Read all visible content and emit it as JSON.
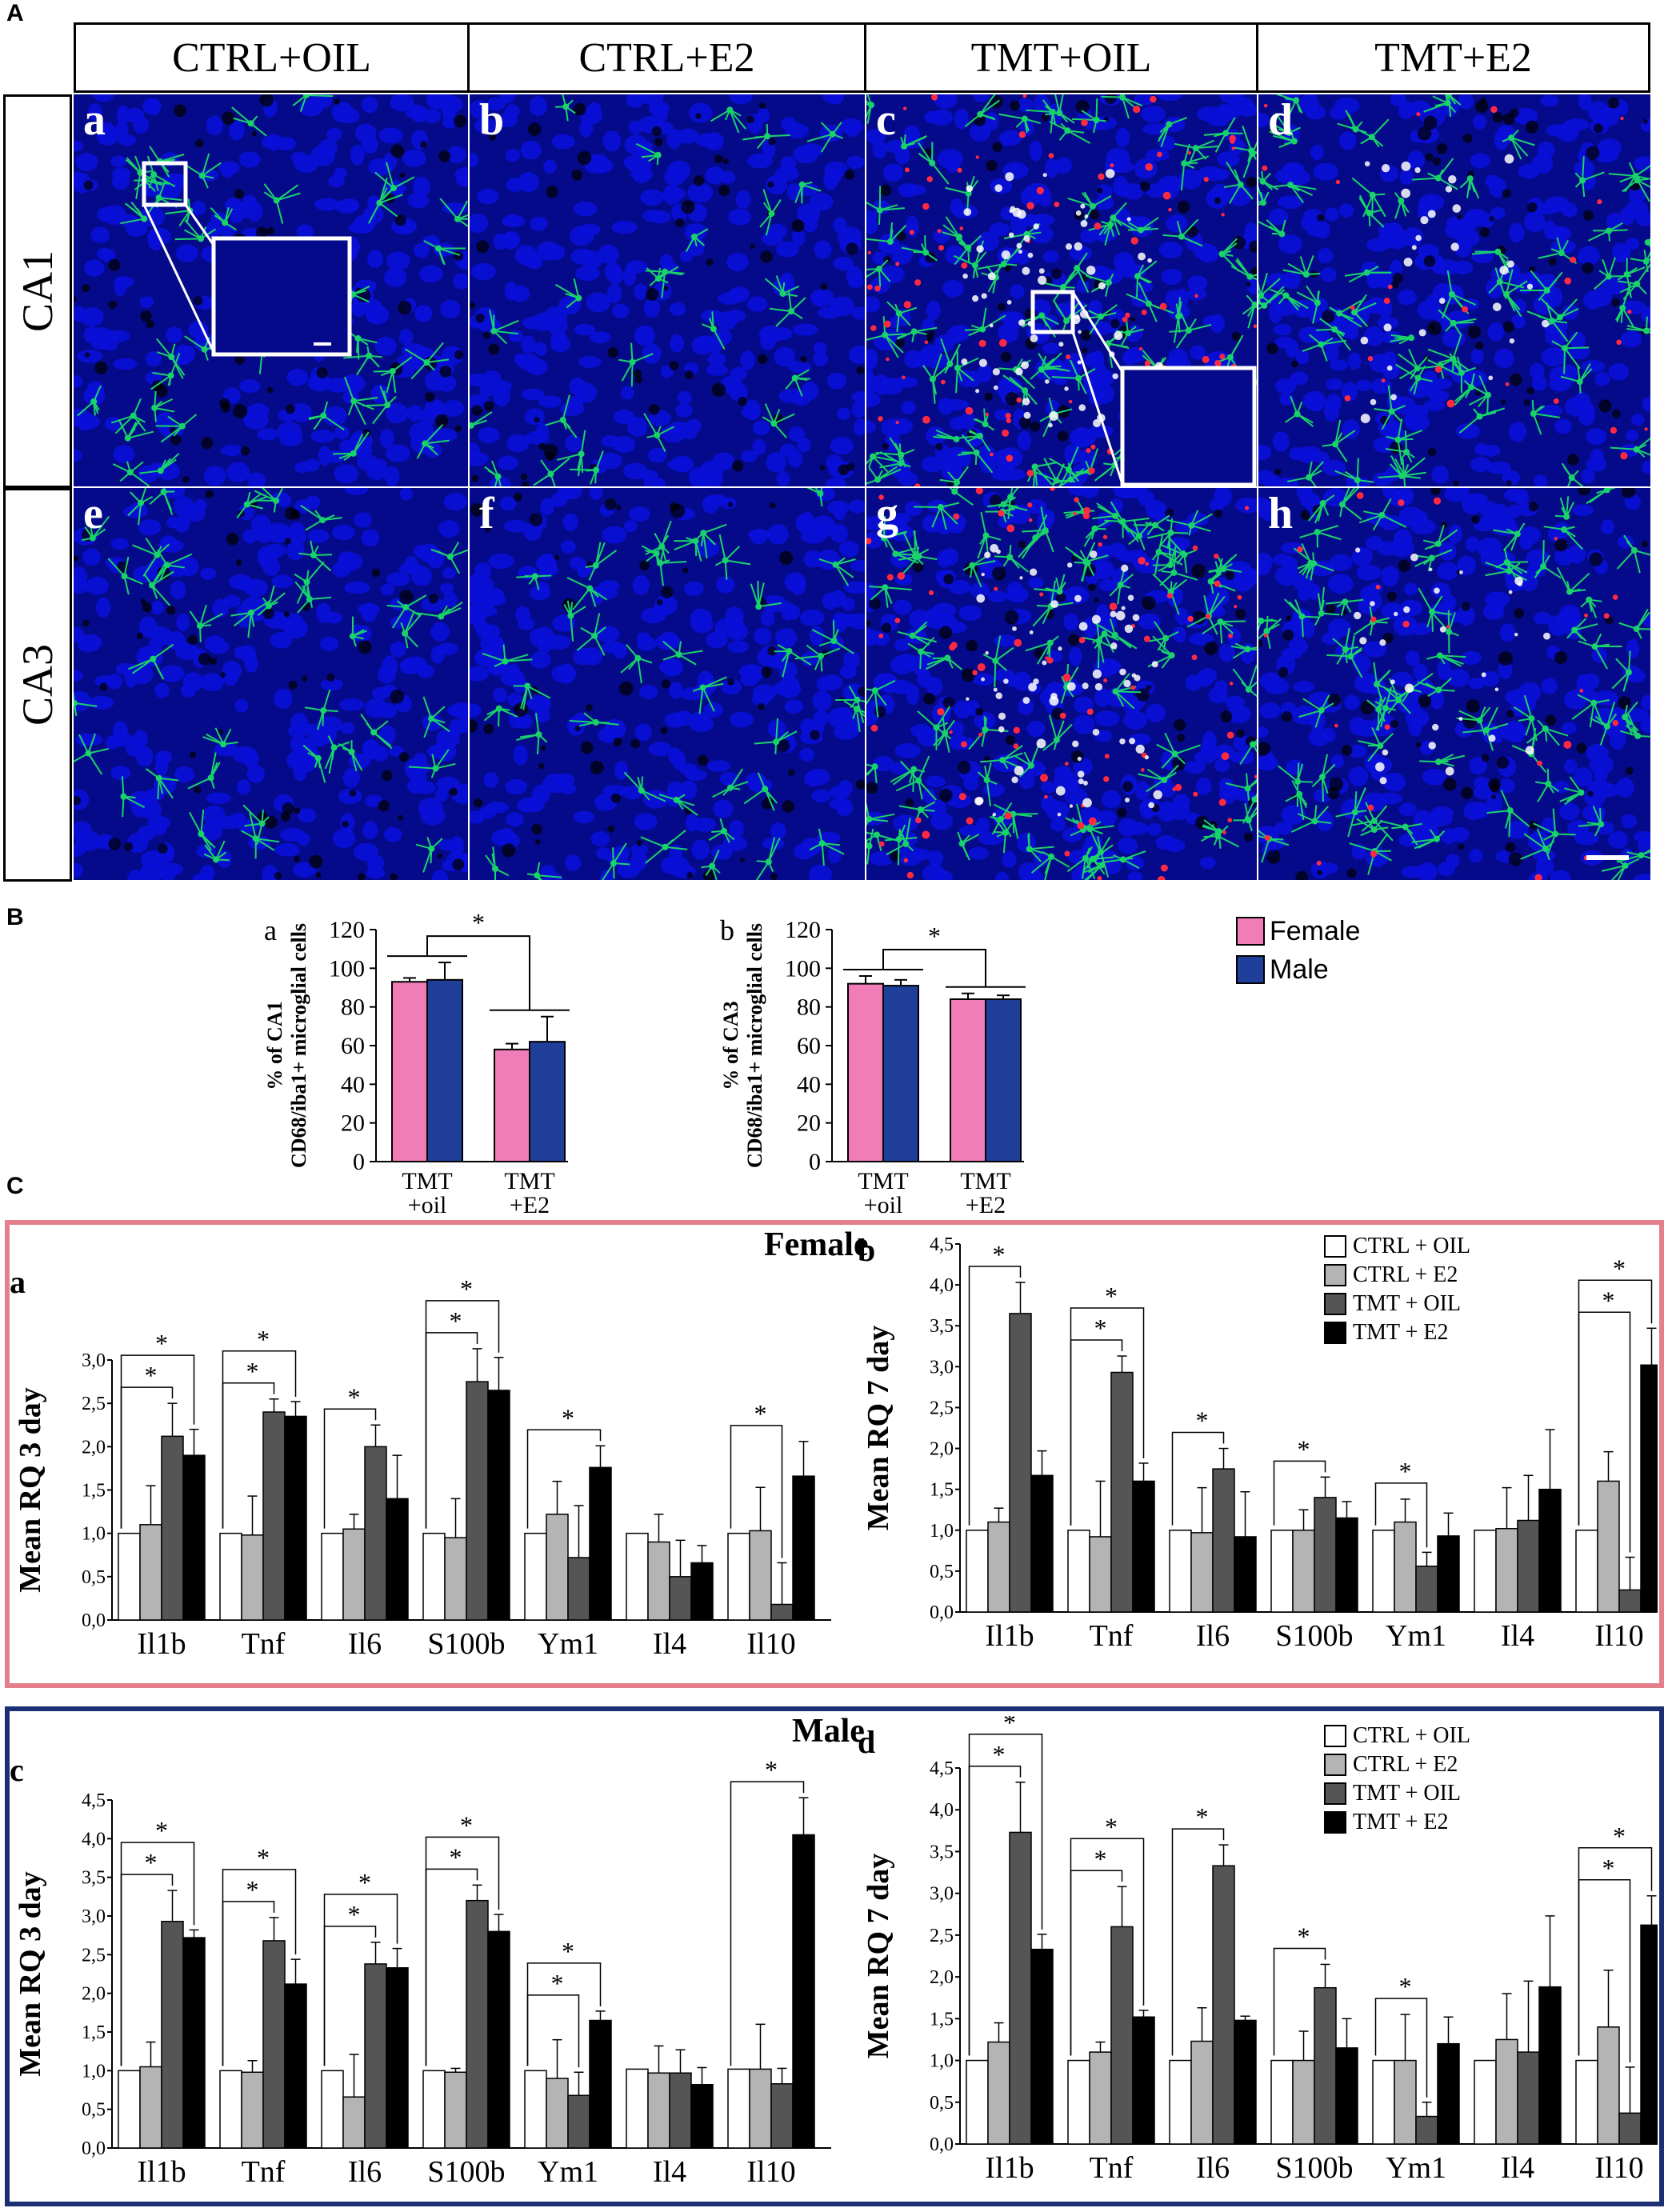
{
  "sections": {
    "A": "A",
    "B": "B",
    "C": "C"
  },
  "panel_a": {
    "columns": [
      "CTRL+OIL",
      "CTRL+E2",
      "TMT+OIL",
      "TMT+E2"
    ],
    "rows": [
      "CA1",
      "CA3"
    ],
    "tiles": [
      {
        "label": "a",
        "row": 0,
        "col": 0,
        "style": "ctrl",
        "inset": true
      },
      {
        "label": "b",
        "row": 0,
        "col": 1,
        "style": "ctrl_sparse",
        "inset": false
      },
      {
        "label": "c",
        "row": 0,
        "col": 2,
        "style": "tmt",
        "inset": true
      },
      {
        "label": "d",
        "row": 0,
        "col": 3,
        "style": "e2",
        "inset": false
      },
      {
        "label": "e",
        "row": 1,
        "col": 0,
        "style": "ctrl",
        "inset": false
      },
      {
        "label": "f",
        "row": 1,
        "col": 1,
        "style": "ctrl",
        "inset": false
      },
      {
        "label": "g",
        "row": 1,
        "col": 2,
        "style": "tmt",
        "inset": false
      },
      {
        "label": "h",
        "row": 1,
        "col": 3,
        "style": "e2",
        "inset": false
      }
    ],
    "colors": {
      "nuclei": "#0a10d8",
      "iba1": "#19d36a",
      "cd68": "#ff2a40",
      "overlap": "#ffffff"
    }
  },
  "panel_b": {
    "legend": [
      {
        "name": "Female",
        "color": "#f07cb8"
      },
      {
        "name": "Male",
        "color": "#1f3f9a"
      }
    ]
  },
  "panel_c": {
    "female_title": "Female",
    "male_title": "Male",
    "frame_colors": {
      "female": "#e47f8b",
      "male": "#1c2f72"
    },
    "legend": [
      {
        "name": "CTRL + OIL",
        "color": "#ffffff"
      },
      {
        "name": "CTRL + E2",
        "color": "#b4b4b4"
      },
      {
        "name": "TMT + OIL",
        "color": "#555555"
      },
      {
        "name": "TMT + E2",
        "color": "#000000"
      }
    ]
  },
  "chart_data": [
    {
      "id": "Ba",
      "type": "bar",
      "label": "a",
      "ylabel": "% of CA1 CD68/iba1+ microglial cells",
      "categories": [
        "TMT\n+oil",
        "TMT\n+E2"
      ],
      "ylim": [
        0,
        120
      ],
      "yticks": [
        0,
        20,
        40,
        60,
        80,
        100,
        120
      ],
      "series": [
        {
          "name": "Female",
          "values": [
            93,
            58
          ],
          "errors": [
            2,
            3
          ]
        },
        {
          "name": "Male",
          "values": [
            94,
            62
          ],
          "errors": [
            9,
            13
          ]
        }
      ],
      "significance": "*"
    },
    {
      "id": "Bb",
      "type": "bar",
      "label": "b",
      "ylabel": "% of CA3 CD68/iba1+ microglial cells",
      "categories": [
        "TMT\n+oil",
        "TMT\n+E2"
      ],
      "ylim": [
        0,
        120
      ],
      "yticks": [
        0,
        20,
        40,
        60,
        80,
        100,
        120
      ],
      "series": [
        {
          "name": "Female",
          "values": [
            92,
            84
          ],
          "errors": [
            4,
            3
          ]
        },
        {
          "name": "Male",
          "values": [
            91,
            84
          ],
          "errors": [
            3,
            2
          ]
        }
      ],
      "significance": "*"
    },
    {
      "id": "Ca",
      "type": "bar",
      "label": "a",
      "ylabel": "Mean RQ 3 day",
      "categories": [
        "Il1b",
        "Tnf",
        "Il6",
        "S100b",
        "Ym1",
        "Il4",
        "Il10"
      ],
      "ylim": [
        0,
        3.0
      ],
      "yticks": [
        "0,0",
        "0,5",
        "1,0",
        "1,5",
        "2,0",
        "2,5",
        "3,0"
      ],
      "series": [
        {
          "name": "CTRL + OIL",
          "values": [
            1.0,
            1.0,
            1.0,
            1.0,
            1.0,
            1.0,
            1.0
          ],
          "errors": [
            0,
            0,
            0,
            0,
            0,
            0,
            0
          ]
        },
        {
          "name": "CTRL + E2",
          "values": [
            1.1,
            0.98,
            1.05,
            0.95,
            1.22,
            0.9,
            1.03
          ],
          "errors": [
            0.45,
            0.45,
            0.17,
            0.45,
            0.38,
            0.32,
            0.5
          ]
        },
        {
          "name": "TMT + OIL",
          "values": [
            2.12,
            2.4,
            2.0,
            2.75,
            0.72,
            0.5,
            0.18
          ],
          "errors": [
            0.38,
            0.15,
            0.25,
            0.38,
            0.6,
            0.42,
            0.48
          ]
        },
        {
          "name": "TMT + E2",
          "values": [
            1.9,
            2.35,
            1.4,
            2.65,
            1.76,
            0.66,
            1.66
          ],
          "errors": [
            0.3,
            0.17,
            0.5,
            0.38,
            0.25,
            0.2,
            0.4
          ]
        }
      ],
      "brackets": [
        [
          0,
          2
        ],
        [
          0,
          3
        ],
        [
          1,
          2
        ],
        [
          1,
          3
        ],
        [
          2,
          2
        ],
        [
          3,
          2
        ],
        [
          3,
          3
        ],
        [
          4,
          3
        ],
        [
          6,
          2
        ]
      ]
    },
    {
      "id": "Cb",
      "type": "bar",
      "label": "b",
      "ylabel": "Mean RQ 7 day",
      "categories": [
        "Il1b",
        "Tnf",
        "Il6",
        "S100b",
        "Ym1",
        "Il4",
        "Il10"
      ],
      "ylim": [
        0,
        4.5
      ],
      "yticks": [
        "0,0",
        "0,5",
        "1,0",
        "1,5",
        "2,0",
        "2,5",
        "3,0",
        "3,5",
        "4,0",
        "4,5"
      ],
      "series": [
        {
          "name": "CTRL + OIL",
          "values": [
            1.0,
            1.0,
            1.0,
            1.0,
            1.0,
            1.0,
            1.0
          ],
          "errors": [
            0,
            0,
            0,
            0,
            0,
            0,
            0
          ]
        },
        {
          "name": "CTRL + E2",
          "values": [
            1.1,
            0.92,
            0.97,
            1.0,
            1.1,
            1.02,
            1.6
          ],
          "errors": [
            0.17,
            0.68,
            0.55,
            0.25,
            0.28,
            0.5,
            0.36
          ]
        },
        {
          "name": "TMT + OIL",
          "values": [
            3.65,
            2.93,
            1.75,
            1.4,
            0.56,
            1.12,
            0.27
          ],
          "errors": [
            0.38,
            0.2,
            0.25,
            0.25,
            0.17,
            0.55,
            0.4
          ]
        },
        {
          "name": "TMT + E2",
          "values": [
            1.67,
            1.6,
            0.92,
            1.15,
            0.93,
            1.5,
            3.02
          ],
          "errors": [
            0.3,
            0.22,
            0.55,
            0.2,
            0.28,
            0.73,
            0.45
          ]
        }
      ],
      "brackets": [
        [
          0,
          2
        ],
        [
          1,
          2
        ],
        [
          1,
          3
        ],
        [
          2,
          2
        ],
        [
          3,
          2
        ],
        [
          4,
          2
        ],
        [
          6,
          2
        ],
        [
          6,
          3
        ]
      ]
    },
    {
      "id": "Cc",
      "type": "bar",
      "label": "c",
      "ylabel": "Mean RQ 3 day",
      "categories": [
        "Il1b",
        "Tnf",
        "Il6",
        "S100b",
        "Ym1",
        "Il4",
        "Il10"
      ],
      "ylim": [
        0,
        4.5
      ],
      "yticks": [
        "0,0",
        "0,5",
        "1,0",
        "1,5",
        "2,0",
        "2,5",
        "3,0",
        "3,5",
        "4,0",
        "4,5"
      ],
      "series": [
        {
          "name": "CTRL + OIL",
          "values": [
            1.0,
            1.0,
            1.0,
            1.0,
            1.0,
            1.02,
            1.02
          ],
          "errors": [
            0,
            0,
            0,
            0,
            0,
            0,
            0
          ]
        },
        {
          "name": "CTRL + E2",
          "values": [
            1.05,
            0.98,
            0.66,
            0.98,
            0.9,
            0.97,
            1.02
          ],
          "errors": [
            0.32,
            0.15,
            0.55,
            0.05,
            0.5,
            0.35,
            0.58
          ]
        },
        {
          "name": "TMT + OIL",
          "values": [
            2.93,
            2.68,
            2.38,
            3.2,
            0.68,
            0.97,
            0.83
          ],
          "errors": [
            0.4,
            0.3,
            0.28,
            0.2,
            0.3,
            0.3,
            0.2
          ]
        },
        {
          "name": "TMT + E2",
          "values": [
            2.72,
            2.12,
            2.33,
            2.8,
            1.65,
            0.82,
            4.05
          ],
          "errors": [
            0.1,
            0.32,
            0.25,
            0.22,
            0.12,
            0.22,
            0.48
          ]
        }
      ],
      "brackets": [
        [
          0,
          2
        ],
        [
          0,
          3
        ],
        [
          1,
          2
        ],
        [
          1,
          3
        ],
        [
          2,
          2
        ],
        [
          2,
          3
        ],
        [
          3,
          2
        ],
        [
          3,
          3
        ],
        [
          4,
          2
        ],
        [
          4,
          3
        ],
        [
          6,
          3
        ]
      ]
    },
    {
      "id": "Cd",
      "type": "bar",
      "label": "d",
      "ylabel": "Mean RQ 7 day",
      "categories": [
        "Il1b",
        "Tnf",
        "Il6",
        "S100b",
        "Ym1",
        "Il4",
        "Il10"
      ],
      "ylim": [
        0,
        4.5
      ],
      "yticks": [
        "0,0",
        "0,5",
        "1,0",
        "1,5",
        "2,0",
        "2,5",
        "3,0",
        "3,5",
        "4,0",
        "4,5"
      ],
      "series": [
        {
          "name": "CTRL + OIL",
          "values": [
            1.0,
            1.0,
            1.0,
            1.0,
            1.0,
            1.0,
            1.0
          ],
          "errors": [
            0,
            0,
            0,
            0,
            0,
            0,
            0
          ]
        },
        {
          "name": "CTRL + E2",
          "values": [
            1.22,
            1.1,
            1.23,
            1.0,
            1.0,
            1.25,
            1.4
          ],
          "errors": [
            0.23,
            0.12,
            0.4,
            0.35,
            0.55,
            0.55,
            0.68
          ]
        },
        {
          "name": "TMT + OIL",
          "values": [
            3.73,
            2.6,
            3.33,
            1.87,
            0.33,
            1.1,
            0.37
          ],
          "errors": [
            0.6,
            0.48,
            0.25,
            0.28,
            0.17,
            0.85,
            0.55
          ]
        },
        {
          "name": "TMT + E2",
          "values": [
            2.33,
            1.52,
            1.48,
            1.15,
            1.2,
            1.88,
            2.62
          ],
          "errors": [
            0.18,
            0.08,
            0.05,
            0.35,
            0.32,
            0.85,
            0.35
          ]
        }
      ],
      "brackets": [
        [
          0,
          2
        ],
        [
          0,
          3
        ],
        [
          1,
          2
        ],
        [
          1,
          3
        ],
        [
          2,
          2
        ],
        [
          3,
          2
        ],
        [
          4,
          2
        ],
        [
          6,
          2
        ],
        [
          6,
          3
        ]
      ]
    }
  ]
}
